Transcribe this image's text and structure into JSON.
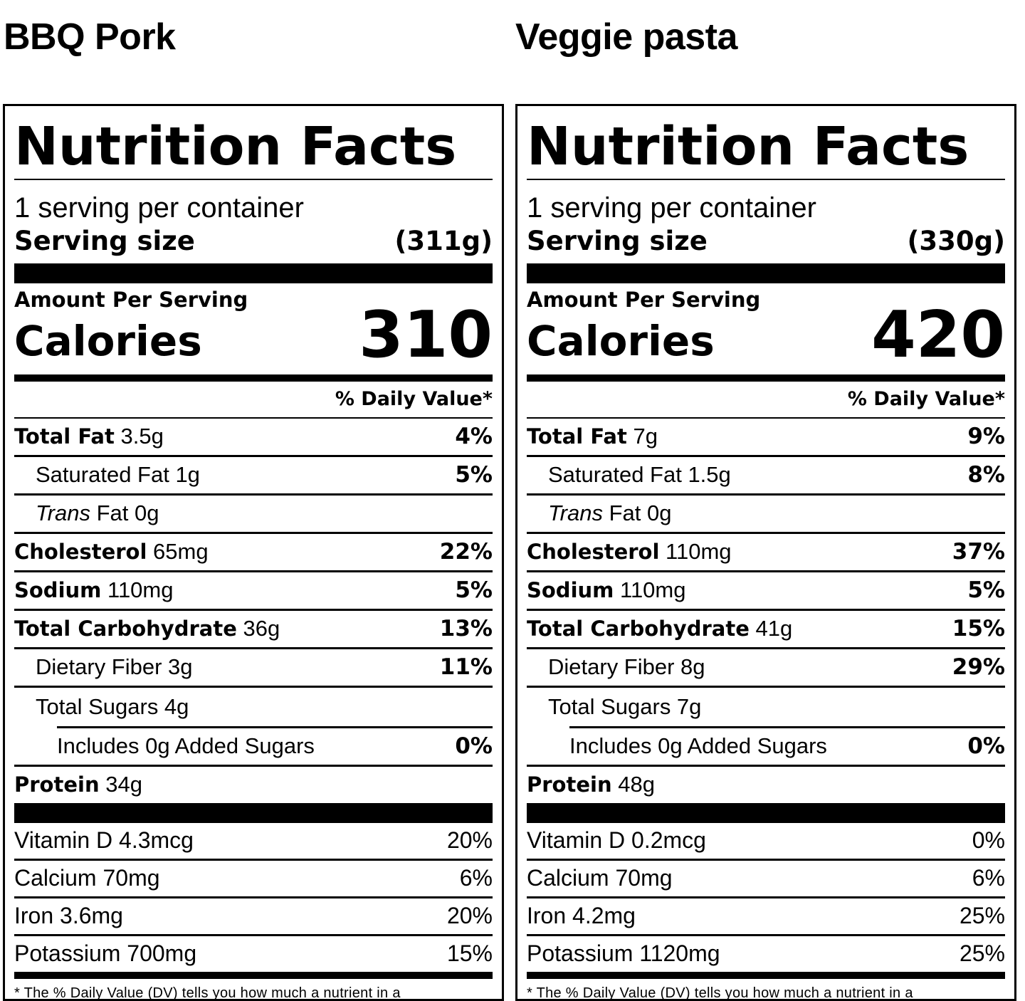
{
  "labels": [
    {
      "product": "BBQ Pork",
      "heading": "Nutrition Facts",
      "servings_per_container": "1 serving per container",
      "serving_size_label": "Serving size",
      "serving_size_value": "(311g)",
      "amount_per_serving": "Amount Per Serving",
      "calories_label": "Calories",
      "calories_value": "310",
      "dv_header": "% Daily Value*",
      "total_fat_label": "Total Fat",
      "total_fat_amount": "3.5g",
      "total_fat_dv": "4%",
      "sat_fat_label": "Saturated Fat 1g",
      "sat_fat_dv": "5%",
      "trans_fat_italic": "Trans",
      "trans_fat_rest": "Fat 0g",
      "cholesterol_label": "Cholesterol",
      "cholesterol_amount": "65mg",
      "cholesterol_dv": "22%",
      "sodium_label": "Sodium",
      "sodium_amount": "110mg",
      "sodium_dv": "5%",
      "carb_label": "Total Carbohydrate",
      "carb_amount": "36g",
      "carb_dv": "13%",
      "fiber_label": "Dietary Fiber 3g",
      "fiber_dv": "11%",
      "sugars_label": "Total Sugars 4g",
      "added_sugars_label": "Includes 0g Added Sugars",
      "added_sugars_dv": "0%",
      "protein_label": "Protein",
      "protein_amount": "34g",
      "vitamin_d": "Vitamin D 4.3mcg",
      "vitamin_d_dv": "20%",
      "calcium": "Calcium 70mg",
      "calcium_dv": "6%",
      "iron": "Iron 3.6mg",
      "iron_dv": "20%",
      "potassium": "Potassium 700mg",
      "potassium_dv": "15%",
      "footnote": "* The % Daily Value (DV) tells you how much a nutrient in a"
    },
    {
      "product": "Veggie pasta",
      "heading": "Nutrition Facts",
      "servings_per_container": "1 serving per container",
      "serving_size_label": "Serving size",
      "serving_size_value": "(330g)",
      "amount_per_serving": "Amount Per Serving",
      "calories_label": "Calories",
      "calories_value": "420",
      "dv_header": "% Daily Value*",
      "total_fat_label": "Total Fat",
      "total_fat_amount": "7g",
      "total_fat_dv": "9%",
      "sat_fat_label": "Saturated Fat 1.5g",
      "sat_fat_dv": "8%",
      "trans_fat_italic": "Trans",
      "trans_fat_rest": "Fat 0g",
      "cholesterol_label": "Cholesterol",
      "cholesterol_amount": "110mg",
      "cholesterol_dv": "37%",
      "sodium_label": "Sodium",
      "sodium_amount": "110mg",
      "sodium_dv": "5%",
      "carb_label": "Total Carbohydrate",
      "carb_amount": "41g",
      "carb_dv": "15%",
      "fiber_label": "Dietary Fiber 8g",
      "fiber_dv": "29%",
      "sugars_label": "Total Sugars 7g",
      "added_sugars_label": "Includes 0g Added Sugars",
      "added_sugars_dv": "0%",
      "protein_label": "Protein",
      "protein_amount": "48g",
      "vitamin_d": "Vitamin D 0.2mcg",
      "vitamin_d_dv": "0%",
      "calcium": "Calcium 70mg",
      "calcium_dv": "6%",
      "iron": "Iron 4.2mg",
      "iron_dv": "25%",
      "potassium": "Potassium 1120mg",
      "potassium_dv": "25%",
      "footnote": "* The % Daily Value (DV) tells you how much a nutrient in a"
    }
  ]
}
